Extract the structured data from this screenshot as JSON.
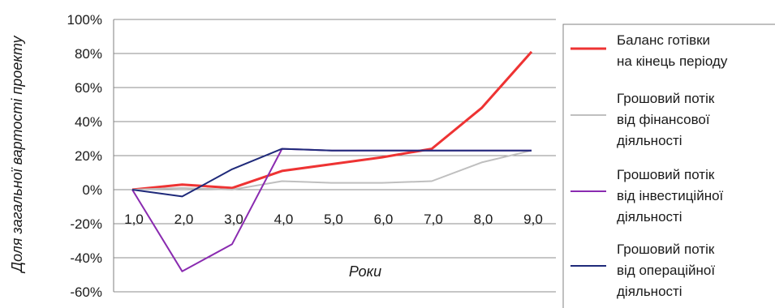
{
  "chart_data": {
    "type": "line",
    "xlabel": "Роки",
    "ylabel": "Доля загальної вартості проекту",
    "x": [
      "1,0",
      "2,0",
      "3,0",
      "4,0",
      "5,0",
      "6,0",
      "7,0",
      "8,0",
      "9,0"
    ],
    "y_ticks": [
      "100%",
      "80%",
      "60%",
      "40%",
      "20%",
      "0%",
      "-20%",
      "-40%",
      "-60%"
    ],
    "ylim": [
      -60,
      100
    ],
    "grid": "horizontal",
    "legend_position": "right",
    "series": [
      {
        "name_lines": [
          "Баланс готівки",
          "на кінець періоду"
        ],
        "color": "#ee3333",
        "width": 3,
        "values": [
          0,
          3,
          1,
          11,
          15,
          19,
          24,
          48,
          81
        ]
      },
      {
        "name_lines": [
          "Грошовий потік",
          "від фінансової",
          "діяльності"
        ],
        "color": "#bfbfbf",
        "width": 2,
        "values": [
          0,
          1,
          0,
          5,
          4,
          4,
          5,
          16,
          23
        ]
      },
      {
        "name_lines": [
          "Грошовий потік",
          "від інвестиційної",
          "діяльності"
        ],
        "color": "#8a2bb0",
        "width": 2,
        "values": [
          0,
          -48,
          -32,
          24,
          23,
          23,
          23,
          23,
          23
        ]
      },
      {
        "name_lines": [
          "Грошовий потік",
          "від операційної",
          "діяльності"
        ],
        "color": "#1f2a7a",
        "width": 2,
        "values": [
          0,
          -4,
          12,
          24,
          23,
          23,
          23,
          23,
          23
        ]
      }
    ]
  }
}
